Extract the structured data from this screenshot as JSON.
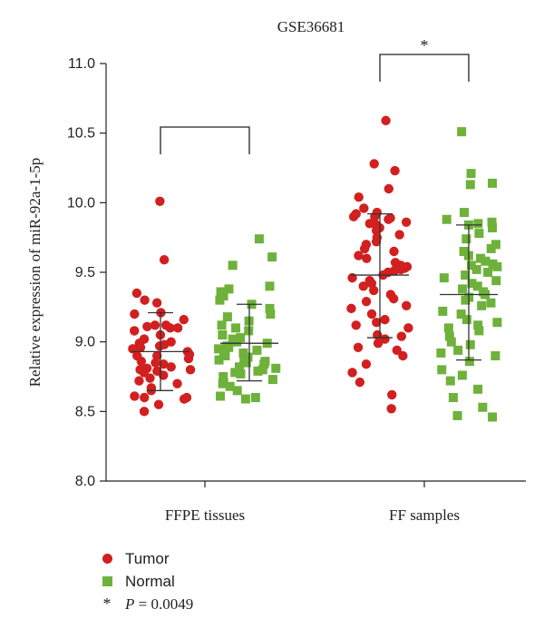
{
  "chart_data": {
    "type": "scatter",
    "title": "GSE36681",
    "ylabel": "Relative expression of miR-92a-1-5p",
    "xlabel": "",
    "ylim": [
      8.0,
      11.0
    ],
    "yticks": [
      "8.0",
      "8.5",
      "9.0",
      "9.5",
      "10.0",
      "10.5",
      "11.0"
    ],
    "categories": [
      "FFPE tissues",
      "FF samples"
    ],
    "legend_position": "bottom-left",
    "series": [
      {
        "name": "Tumor",
        "marker": "circle",
        "color": "#d21f1f",
        "groups": [
          {
            "category": "FFPE tissues",
            "mean": 8.93,
            "sd_upper": 9.21,
            "sd_lower": 8.65,
            "values": [
              10.01,
              9.59,
              9.35,
              9.3,
              9.28,
              9.21,
              9.2,
              9.16,
              9.12,
              9.12,
              9.11,
              9.1,
              9.1,
              9.08,
              9.05,
              9.02,
              9.0,
              8.99,
              8.98,
              8.97,
              8.96,
              8.95,
              8.93,
              8.91,
              8.9,
              8.9,
              8.88,
              8.86,
              8.85,
              8.84,
              8.82,
              8.81,
              8.8,
              8.8,
              8.79,
              8.78,
              8.76,
              8.74,
              8.72,
              8.7,
              8.67,
              8.65,
              8.61,
              8.6,
              8.6,
              8.59,
              8.55,
              8.5
            ]
          },
          {
            "category": "FF samples",
            "mean": 9.48,
            "sd_upper": 9.92,
            "sd_lower": 9.03,
            "values": [
              10.59,
              10.28,
              10.23,
              10.1,
              10.04,
              9.96,
              9.93,
              9.92,
              9.9,
              9.9,
              9.89,
              9.88,
              9.86,
              9.85,
              9.84,
              9.82,
              9.8,
              9.77,
              9.75,
              9.72,
              9.7,
              9.67,
              9.65,
              9.62,
              9.6,
              9.57,
              9.55,
              9.54,
              9.53,
              9.52,
              9.51,
              9.5,
              9.48,
              9.46,
              9.44,
              9.42,
              9.4,
              9.37,
              9.34,
              9.31,
              9.29,
              9.26,
              9.24,
              9.2,
              9.16,
              9.14,
              9.12,
              9.1,
              9.05,
              9.04,
              9.02,
              8.99,
              8.96,
              8.94,
              8.9,
              8.84,
              8.78,
              8.71,
              8.62,
              8.52
            ]
          }
        ]
      },
      {
        "name": "Normal",
        "marker": "square",
        "color": "#6eb13b",
        "groups": [
          {
            "category": "FFPE tissues",
            "mean": 8.99,
            "sd_upper": 9.27,
            "sd_lower": 8.72,
            "values": [
              9.74,
              9.61,
              9.55,
              9.4,
              9.38,
              9.36,
              9.33,
              9.3,
              9.27,
              9.24,
              9.2,
              9.18,
              9.15,
              9.12,
              9.1,
              9.08,
              9.05,
              9.03,
              9.02,
              9.0,
              8.99,
              8.97,
              8.96,
              8.95,
              8.94,
              8.93,
              8.92,
              8.9,
              8.89,
              8.88,
              8.87,
              8.86,
              8.85,
              8.84,
              8.82,
              8.81,
              8.8,
              8.79,
              8.78,
              8.77,
              8.75,
              8.73,
              8.71,
              8.7,
              8.68,
              8.65,
              8.61,
              8.6,
              8.59
            ]
          },
          {
            "category": "FF samples",
            "mean": 9.34,
            "sd_upper": 9.84,
            "sd_lower": 8.87,
            "values": [
              10.51,
              10.21,
              10.14,
              10.13,
              9.93,
              9.88,
              9.86,
              9.85,
              9.84,
              9.82,
              9.78,
              9.74,
              9.7,
              9.67,
              9.65,
              9.62,
              9.6,
              9.58,
              9.56,
              9.55,
              9.54,
              9.52,
              9.5,
              9.48,
              9.46,
              9.44,
              9.42,
              9.4,
              9.38,
              9.36,
              9.34,
              9.32,
              9.3,
              9.28,
              9.26,
              9.22,
              9.2,
              9.16,
              9.14,
              9.12,
              9.1,
              9.08,
              9.04,
              9.0,
              8.98,
              8.94,
              8.92,
              8.9,
              8.86,
              8.8,
              8.76,
              8.72,
              8.66,
              8.6,
              8.53,
              8.47,
              8.46
            ]
          }
        ]
      }
    ],
    "comparisons": [
      {
        "category": "FFPE tissues",
        "label": ""
      },
      {
        "category": "FF samples",
        "label": "*"
      }
    ]
  },
  "legend": {
    "tumor_label": "Tumor",
    "normal_label": "Normal",
    "star_symbol": "*",
    "p_symbol": "P",
    "p_value_text": " = 0.0049"
  }
}
